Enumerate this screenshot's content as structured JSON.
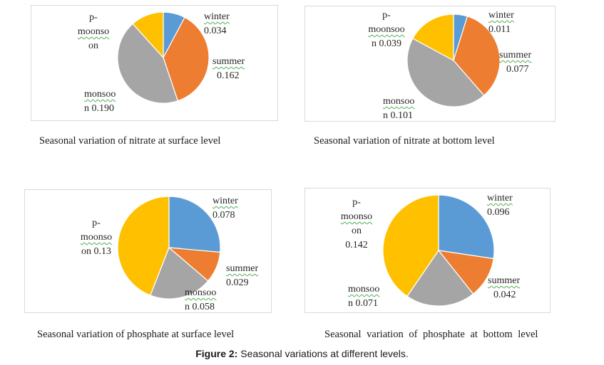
{
  "figure_caption": {
    "prefix": "Figure 2:",
    "text": " Seasonal variations at different levels."
  },
  "colors": {
    "winter": "#5b9bd5",
    "summer": "#ed7d31",
    "monsoon": "#a5a5a5",
    "post_monsoon": "#ffc000"
  },
  "chart_data": [
    {
      "type": "pie",
      "title": "Seasonal variation of nitrate at surface level",
      "categories": [
        "winter",
        "summer",
        "monsoon",
        "p-moonsoon"
      ],
      "values": [
        0.034,
        0.162,
        0.19,
        0.051
      ],
      "labels": {
        "winter": [
          "winter",
          "0.034"
        ],
        "summer": [
          "summer",
          "0.162"
        ],
        "monsoon": [
          "monsoo",
          "n 0.190"
        ],
        "post_monsoon": [
          "p-",
          "moonso",
          "on"
        ]
      }
    },
    {
      "type": "pie",
      "title": "Seasonal variation of nitrate at bottom level",
      "categories": [
        "winter",
        "summer",
        "monsoon",
        "p-moonsoon"
      ],
      "values": [
        0.011,
        0.077,
        0.101,
        0.039
      ],
      "labels": {
        "winter": [
          "winter",
          "0.011"
        ],
        "summer": [
          "summer",
          "0.077"
        ],
        "monsoon": [
          "monsoo",
          "n 0.101"
        ],
        "post_monsoon": [
          "p-",
          "moonsoo",
          "n 0.039"
        ]
      }
    },
    {
      "type": "pie",
      "title": "Seasonal variation of phosphate at surface level",
      "categories": [
        "winter",
        "summer",
        "monsoon",
        "p-moonsoon"
      ],
      "values": [
        0.078,
        0.029,
        0.058,
        0.13
      ],
      "labels": {
        "winter": [
          "winter",
          "0.078"
        ],
        "summer": [
          "summer",
          "0.029"
        ],
        "monsoon": [
          "monsoo",
          "n 0.058"
        ],
        "post_monsoon": [
          "p-",
          "moonso",
          "on 0.13"
        ]
      }
    },
    {
      "type": "pie",
      "title": "Seasonal variation of phosphate at bottom level",
      "categories": [
        "winter",
        "summer",
        "monsoon",
        "p-moonsoon"
      ],
      "values": [
        0.096,
        0.042,
        0.071,
        0.142
      ],
      "labels": {
        "winter": [
          "winter",
          "0.096"
        ],
        "summer": [
          "summer",
          "0.042"
        ],
        "monsoon": [
          "monsoo",
          "n 0.071"
        ],
        "post_monsoon": [
          "p-",
          "moonso",
          "on",
          "0.142"
        ]
      }
    }
  ]
}
